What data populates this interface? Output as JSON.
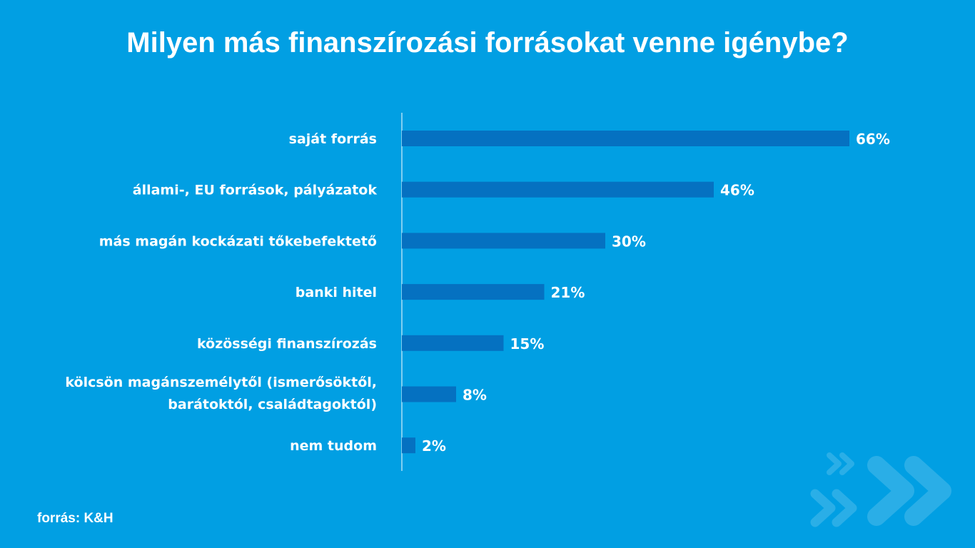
{
  "colors": {
    "background": "#019FE3",
    "bar": "#0571C1",
    "text": "#FFFFFF",
    "axis": "#FFFFFF",
    "chevron": "#4CBCEB"
  },
  "slide": {
    "title": "Milyen más finanszírozási forrásokat venne igénybe?",
    "source": "forrás: K&H"
  },
  "decoration": {
    "icon": "chevron-arrows-icon"
  },
  "chart_data": {
    "type": "bar",
    "orientation": "horizontal",
    "categories": [
      [
        "saját forrás"
      ],
      [
        "állami-, EU források, pályázatok"
      ],
      [
        "más magán kockázati tőkebefektető"
      ],
      [
        "banki hitel"
      ],
      [
        "közösségi finanszírozás"
      ],
      [
        "kölcsön magánszemélytől (ismerősöktől,",
        "barátoktól, családtagoktól)"
      ],
      [
        "nem tudom"
      ]
    ],
    "values": [
      66,
      46,
      30,
      21,
      15,
      8,
      2
    ],
    "value_labels": [
      "66%",
      "46%",
      "30%",
      "21%",
      "15%",
      "8%",
      "2%"
    ],
    "unit": "%",
    "xlim": [
      0,
      70
    ],
    "grid": false,
    "legend": "none"
  }
}
